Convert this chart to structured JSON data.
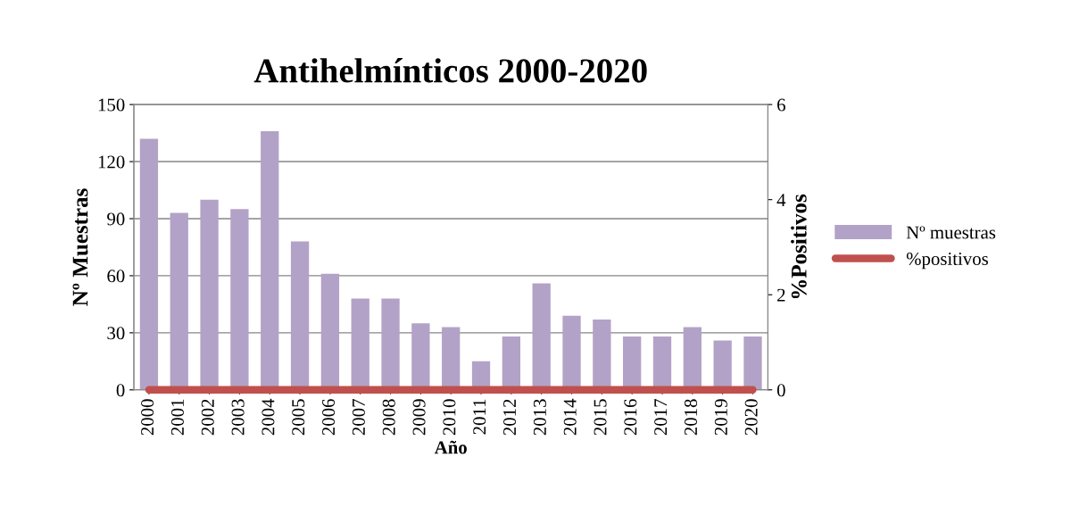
{
  "chart_data": {
    "type": "bar",
    "title": "Antihelmínticos 2000-2020",
    "xlabel": "Año",
    "ylabel": "Nº Muestras",
    "y2label": "%Positivos",
    "categories": [
      "2000",
      "2001",
      "2002",
      "2003",
      "2004",
      "2005",
      "2006",
      "2007",
      "2008",
      "2009",
      "2010",
      "2011",
      "2012",
      "2013",
      "2014",
      "2015",
      "2016",
      "2017",
      "2018",
      "2019",
      "2020"
    ],
    "series": [
      {
        "name": "Nº muestras",
        "color": "#b3a2c7",
        "values": [
          132,
          93,
          100,
          95,
          136,
          78,
          61,
          48,
          48,
          35,
          33,
          15,
          28,
          56,
          39,
          37,
          28,
          28,
          33,
          26,
          28
        ]
      },
      {
        "name": "%positivos",
        "type": "line",
        "axis": "y2",
        "color": "#c0504d",
        "values": [
          0,
          0,
          0,
          0,
          0,
          0,
          0,
          0,
          0,
          0,
          0,
          0,
          0,
          0,
          0,
          0,
          0,
          0,
          0,
          0,
          0
        ]
      }
    ],
    "ylim": [
      0,
      150
    ],
    "yticks": [
      0,
      30,
      60,
      90,
      120,
      150
    ],
    "y2lim": [
      0,
      6
    ],
    "y2ticks": [
      0,
      2,
      4,
      6
    ],
    "grid": "y",
    "legend": "right",
    "marker": "none"
  }
}
